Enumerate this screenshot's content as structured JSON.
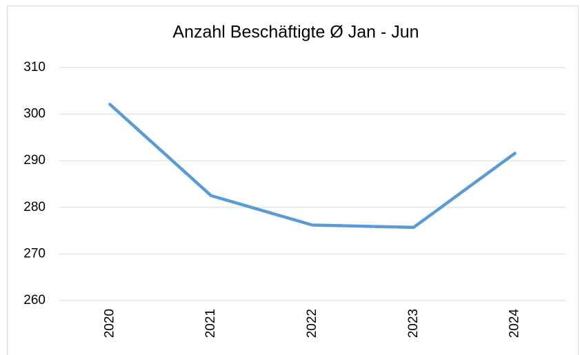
{
  "chart_data": {
    "type": "line",
    "title": "Anzahl Beschäftigte Ø Jan - Jun",
    "categories": [
      "2020",
      "2021",
      "2022",
      "2023",
      "2024"
    ],
    "values": [
      302.1,
      282.5,
      276.2,
      275.7,
      291.6
    ],
    "color": "#5b9bd5",
    "ylim": [
      260,
      310
    ],
    "yticks": [
      260,
      270,
      280,
      290,
      300,
      310
    ],
    "grid": true
  }
}
